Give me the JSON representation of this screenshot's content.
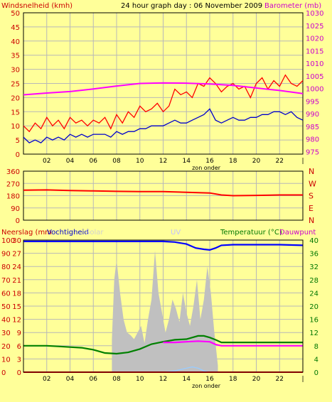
{
  "colors": {
    "background": "#ffff99",
    "border": "#000000",
    "grid": "#b8b8b8",
    "wind_gust": "#ff0000",
    "wind_avg": "#0000cc",
    "barometer": "#ff00ff",
    "direction": "#ff0000",
    "rain": "#ff0000",
    "humidity": "#0000ff",
    "solar": "#c0c0c0",
    "uv": "#99ccff",
    "temperature": "#008000",
    "dewpoint": "#ff00ff",
    "label_red": "#cc0000",
    "label_blue": "#0000cc",
    "label_magenta": "#cc00cc",
    "label_green": "#007700",
    "label_solar": "#d0d0d0",
    "label_uv": "#c0c0ff"
  },
  "chart_data": [
    {
      "type": "line",
      "title": "24 hour graph day : 06 November 2009",
      "left_axis_label": "Windsnelheid (kmh)",
      "right_axis_label": "Barometer (mb)",
      "x_ticks": [
        "02",
        "04",
        "06",
        "08",
        "10",
        "12",
        "14",
        "16",
        "18",
        "20",
        "22",
        ""
      ],
      "x_ticks_shown": [
        "02",
        "04",
        "06",
        "08",
        "10",
        "12",
        "14",
        "16",
        "18",
        "20",
        "22",
        "|"
      ],
      "x_range": [
        0,
        24
      ],
      "y_left_ticks": [
        "0",
        "5",
        "10",
        "15",
        "20",
        "25",
        "30",
        "35",
        "40",
        "45",
        "50"
      ],
      "y_left_range": [
        0,
        50
      ],
      "y_right_ticks": [
        "975",
        "980",
        "985",
        "990",
        "995",
        "1000",
        "1005",
        "1010",
        "1015",
        "1020",
        "1025",
        "1030"
      ],
      "y_right_range": [
        974,
        1030
      ],
      "sun_label": "zon onder",
      "sun_x": 15.7,
      "grid": true,
      "series": [
        {
          "name": "gust",
          "axis": "left",
          "x": [
            0,
            0.5,
            1,
            1.5,
            2,
            2.5,
            3,
            3.5,
            4,
            4.5,
            5,
            5.5,
            6,
            6.5,
            7,
            7.5,
            8,
            8.5,
            9,
            9.5,
            10,
            10.5,
            11,
            11.5,
            12,
            12.5,
            13,
            13.5,
            14,
            14.5,
            15,
            15.5,
            16,
            16.5,
            17,
            17.5,
            18,
            18.5,
            19,
            19.5,
            20,
            20.5,
            21,
            21.5,
            22,
            22.5,
            23,
            23.5,
            24
          ],
          "y": [
            10,
            8,
            11,
            9,
            13,
            10,
            12,
            9,
            13,
            11,
            12,
            10,
            12,
            11,
            13,
            9,
            14,
            11,
            15,
            13,
            17,
            15,
            16,
            18,
            15,
            17,
            23,
            21,
            22,
            20,
            25,
            24,
            27,
            25,
            22,
            24,
            25,
            23,
            24,
            20,
            25,
            27,
            23,
            26,
            24,
            28,
            25,
            24,
            26
          ]
        },
        {
          "name": "average",
          "axis": "left",
          "x": [
            0,
            0.5,
            1,
            1.5,
            2,
            2.5,
            3,
            3.5,
            4,
            4.5,
            5,
            5.5,
            6,
            6.5,
            7,
            7.5,
            8,
            8.5,
            9,
            9.5,
            10,
            10.5,
            11,
            11.5,
            12,
            12.5,
            13,
            13.5,
            14,
            14.5,
            15,
            15.5,
            16,
            16.5,
            17,
            17.5,
            18,
            18.5,
            19,
            19.5,
            20,
            20.5,
            21,
            21.5,
            22,
            22.5,
            23,
            23.5,
            24
          ],
          "y": [
            6,
            4,
            5,
            4,
            6,
            5,
            6,
            5,
            7,
            6,
            7,
            6,
            7,
            7,
            7,
            6,
            8,
            7,
            8,
            8,
            9,
            9,
            10,
            10,
            10,
            11,
            12,
            11,
            11,
            12,
            13,
            14,
            16,
            12,
            11,
            12,
            13,
            12,
            12,
            13,
            13,
            14,
            14,
            15,
            15,
            14,
            15,
            13,
            12
          ]
        },
        {
          "name": "barometer",
          "axis": "right",
          "x": [
            0,
            2,
            4,
            6,
            8,
            10,
            12,
            14,
            16,
            18,
            20,
            22,
            24
          ],
          "y": [
            997.5,
            998.2,
            998.8,
            999.8,
            1001.0,
            1002.0,
            1002.2,
            1002.1,
            1001.8,
            1001.2,
            1000.2,
            999.2,
            998.0
          ]
        }
      ]
    },
    {
      "type": "line",
      "title": "",
      "y_ticks": [
        "0",
        "90",
        "180",
        "270",
        "360"
      ],
      "y_range": [
        0,
        360
      ],
      "right_labels": [
        "N",
        "W",
        "S",
        "E",
        "N"
      ],
      "x_ticks": [
        "",
        "",
        "",
        "",
        "",
        "",
        "",
        "",
        "",
        "",
        "",
        ""
      ],
      "x_range": [
        0,
        24
      ],
      "grid": true,
      "series": [
        {
          "name": "direction",
          "x": [
            0,
            2,
            4,
            6,
            8,
            10,
            12,
            14,
            16,
            17,
            18,
            20,
            22,
            24
          ],
          "y": [
            220,
            222,
            218,
            215,
            212,
            210,
            210,
            205,
            200,
            185,
            180,
            182,
            185,
            185
          ]
        }
      ]
    },
    {
      "type": "area",
      "labels": {
        "rain": "Neerslag (mm",
        "humidity": "Vochtigheid",
        "solar": "Solar",
        "uv": "UV",
        "temperature": "Temperatuur (°C)",
        "dewpoint": "Dauwpunt"
      },
      "left_outer_ticks": [
        "0",
        "10",
        "20",
        "30",
        "40",
        "50",
        "60",
        "70",
        "80",
        "90",
        "100"
      ],
      "left_inner_ticks": [
        "0",
        "3",
        "6",
        "9",
        "12",
        "15",
        "18",
        "21",
        "24",
        "27",
        "30"
      ],
      "right_ticks": [
        "0",
        "4",
        "8",
        "12",
        "16",
        "20",
        "24",
        "28",
        "32",
        "36",
        "40"
      ],
      "y_range_percent": [
        0,
        100
      ],
      "y_range_temp": [
        0,
        40
      ],
      "x_ticks": [
        "02",
        "04",
        "06",
        "08",
        "10",
        "12",
        "14",
        "16",
        "18",
        "20",
        "22",
        ""
      ],
      "x_ticks_shown": [
        "02",
        "04",
        "06",
        "08",
        "10",
        "12",
        "14",
        "16",
        "18",
        "20",
        "22",
        "|"
      ],
      "x_range": [
        0,
        24
      ],
      "sun_label": "zon onder",
      "sun_x": 15.7,
      "grid": true,
      "series": [
        {
          "name": "humidity",
          "unit": "percent",
          "x": [
            0,
            2,
            4,
            6,
            8,
            10,
            12,
            13,
            14,
            14.8,
            15.5,
            16,
            16.5,
            17,
            18,
            20,
            22,
            24
          ],
          "y": [
            99,
            99,
            99,
            99,
            99,
            99,
            99,
            98.5,
            97,
            94,
            93,
            92.5,
            94,
            96,
            96.5,
            96.5,
            96.5,
            96
          ]
        },
        {
          "name": "solar",
          "unit": "percent",
          "x": [
            7.6,
            7.8,
            8,
            8.3,
            8.6,
            8.9,
            9.2,
            9.5,
            9.8,
            10.1,
            10.4,
            10.7,
            11,
            11.3,
            11.6,
            11.9,
            12.2,
            12.5,
            12.8,
            13.1,
            13.4,
            13.7,
            14,
            14.3,
            14.6,
            14.9,
            15.2,
            15.5,
            15.8,
            16.1,
            16.4,
            16.7
          ],
          "y": [
            25,
            70,
            85,
            60,
            40,
            30,
            28,
            25,
            30,
            35,
            22,
            40,
            55,
            92,
            60,
            45,
            30,
            40,
            55,
            48,
            38,
            60,
            45,
            35,
            50,
            70,
            40,
            55,
            80,
            60,
            30,
            5
          ]
        },
        {
          "name": "uv",
          "unit": "percent",
          "x": [
            8,
            10,
            12,
            13,
            14,
            14.5,
            15,
            15.5,
            16,
            16.5
          ],
          "y": [
            0,
            0,
            0,
            1,
            3,
            4,
            3,
            1,
            0,
            0
          ]
        },
        {
          "name": "temperature",
          "unit": "celsius",
          "x": [
            0,
            1,
            2,
            3,
            4,
            5,
            6,
            6.5,
            7,
            8,
            9,
            10,
            11,
            12,
            13,
            14,
            15,
            15.5,
            16,
            16.5,
            17,
            18,
            20,
            22,
            24
          ],
          "y": [
            8,
            8,
            8,
            7.8,
            7.6,
            7.4,
            6.8,
            6.3,
            5.8,
            5.6,
            6,
            7,
            8.5,
            9.2,
            9.8,
            10,
            11,
            11,
            10.5,
            9.8,
            9,
            9,
            9,
            9,
            9
          ]
        },
        {
          "name": "dewpoint",
          "unit": "celsius",
          "x": [
            12,
            13,
            14,
            15,
            16,
            16.5,
            17,
            18,
            20,
            22,
            24
          ],
          "y": [
            9,
            9,
            9.2,
            9.4,
            9.2,
            8.4,
            8,
            8,
            8,
            8,
            8
          ]
        },
        {
          "name": "rain",
          "unit": "mm",
          "x": [
            0,
            24
          ],
          "y": [
            0,
            0
          ]
        }
      ]
    }
  ]
}
